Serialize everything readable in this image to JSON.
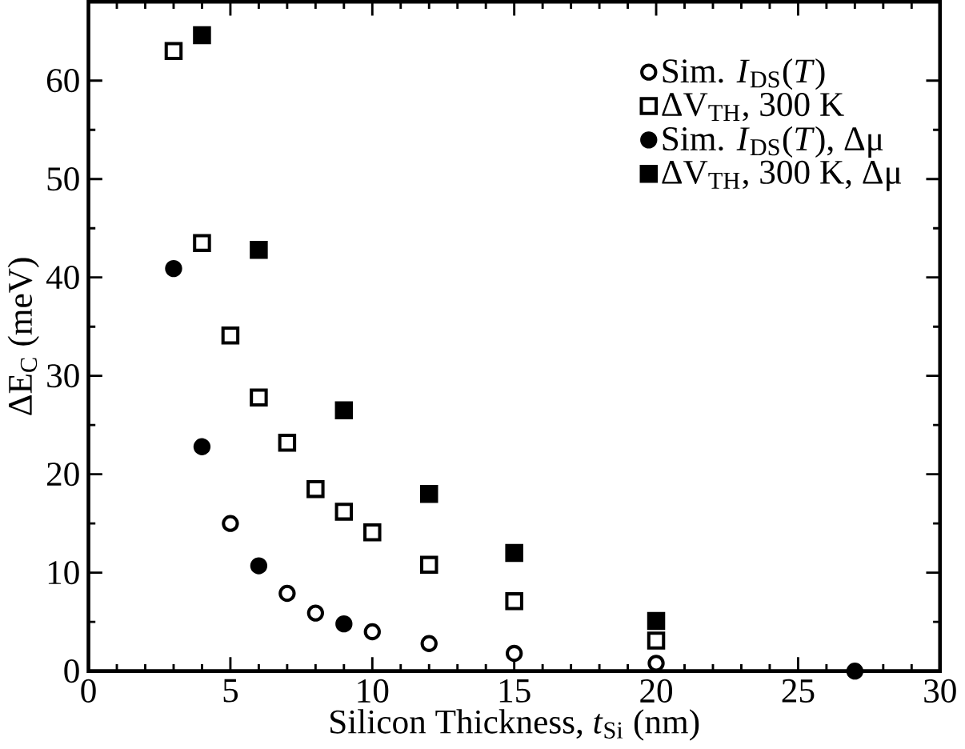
{
  "chart_data": {
    "type": "scatter",
    "xlabel": "Silicon Thickness, *t*$_{Si}$ (nm)",
    "ylabel": "ΔE$_{C}$ (meV)",
    "xlim": [
      0,
      30
    ],
    "ylim": [
      0,
      68
    ],
    "xticks": [
      0,
      5,
      10,
      15,
      20,
      25,
      30
    ],
    "yticks": [
      0,
      10,
      20,
      30,
      40,
      50,
      60
    ],
    "legend": "top right",
    "grid": false,
    "series": [
      {
        "name": "Sim. *I*$_{DS}$(*T*)",
        "color": "#000000",
        "marker": "circle",
        "x": [
          5,
          7,
          8,
          10,
          12,
          15,
          20
        ],
        "values": [
          15.0,
          7.9,
          5.9,
          4.0,
          2.8,
          1.8,
          0.8
        ]
      },
      {
        "name": "ΔV$_{TH}$, 300 K",
        "color": "#000000",
        "marker": "square",
        "x": [
          3,
          4,
          5,
          6,
          7,
          8,
          9,
          10,
          12,
          15,
          20
        ],
        "values": [
          63,
          43.5,
          34.1,
          27.8,
          23.2,
          18.5,
          16.2,
          14.1,
          10.8,
          7.1,
          3.1
        ]
      },
      {
        "name": "Sim. *I*$_{DS}$(*T*), Δμ",
        "color": "#000000",
        "marker": "circle",
        "x": [
          3,
          4,
          6,
          9,
          27
        ],
        "values": [
          40.9,
          22.8,
          10.7,
          4.8,
          0
        ]
      },
      {
        "name": "ΔV$_{TH}$, 300 K, Δμ",
        "color": "#000000",
        "marker": "square",
        "x": [
          4,
          6,
          9,
          12,
          15,
          20
        ],
        "values": [
          64.6,
          42.8,
          26.5,
          18.0,
          12.0,
          5.1
        ]
      }
    ]
  }
}
